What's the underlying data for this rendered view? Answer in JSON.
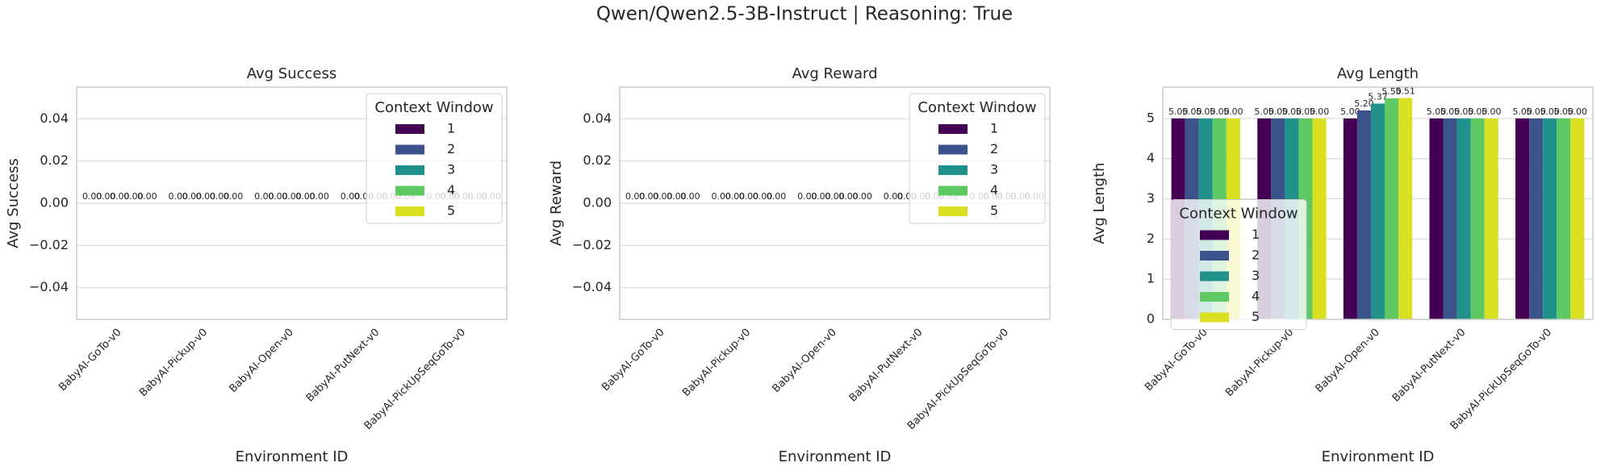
{
  "title": "Qwen/Qwen2.5-3B-Instruct | Reasoning: True",
  "chart_data": [
    {
      "type": "bar",
      "title": "Avg Success",
      "x_label": "Environment ID",
      "y_label": "Avg Success",
      "categories": [
        "BabyAI-GoTo-v0",
        "BabyAI-Pickup-v0",
        "BabyAI-Open-v0",
        "BabyAI-PutNext-v0",
        "BabyAI-PickUpSeqGoTo-v0"
      ],
      "legend_title": "Context Window",
      "legend_loc": "upper right",
      "grid": true,
      "ylim": [
        -0.055,
        0.055
      ],
      "yticks": [
        {
          "value": -0.04,
          "label": "−0.04"
        },
        {
          "value": -0.02,
          "label": "−0.02"
        },
        {
          "value": 0,
          "label": "0.00"
        },
        0.02,
        0.04
      ],
      "series": [
        {
          "name": "1",
          "color": "#440154",
          "values": [
            0,
            0,
            0,
            0,
            0
          ],
          "value_labels": [
            "0.00",
            "0.00",
            "0.00",
            "0.00",
            "0.00"
          ]
        },
        {
          "name": "2",
          "color": "#3b528b",
          "values": [
            0,
            0,
            0,
            0,
            0
          ],
          "value_labels": [
            "0.00",
            "0.00",
            "0.00",
            "0.00",
            "0.00"
          ]
        },
        {
          "name": "3",
          "color": "#21918c",
          "values": [
            0,
            0,
            0,
            0,
            0
          ],
          "value_labels": [
            "0.00",
            "0.00",
            "0.00",
            "0.00",
            "0.00"
          ]
        },
        {
          "name": "4",
          "color": "#5ec962",
          "values": [
            0,
            0,
            0,
            0,
            0
          ],
          "value_labels": [
            "0.00",
            "0.00",
            "0.00",
            "0.00",
            "0.00"
          ]
        },
        {
          "name": "5",
          "color": "#d9e021",
          "values": [
            0,
            0,
            0,
            0,
            0
          ],
          "value_labels": [
            "0.00",
            "0.00",
            "0.00",
            "0.00",
            "0.00"
          ]
        }
      ]
    },
    {
      "type": "bar",
      "title": "Avg Reward",
      "x_label": "Environment ID",
      "y_label": "Avg Reward",
      "categories": [
        "BabyAI-GoTo-v0",
        "BabyAI-Pickup-v0",
        "BabyAI-Open-v0",
        "BabyAI-PutNext-v0",
        "BabyAI-PickUpSeqGoTo-v0"
      ],
      "legend_title": "Context Window",
      "legend_loc": "upper right",
      "grid": true,
      "ylim": [
        -0.055,
        0.055
      ],
      "yticks": [
        {
          "value": -0.04,
          "label": "−0.04"
        },
        {
          "value": -0.02,
          "label": "−0.02"
        },
        {
          "value": 0,
          "label": "0.00"
        },
        0.02,
        0.04
      ],
      "series": [
        {
          "name": "1",
          "color": "#440154",
          "values": [
            0,
            0,
            0,
            0,
            0
          ],
          "value_labels": [
            "0.00",
            "0.00",
            "0.00",
            "0.00",
            "0.00"
          ]
        },
        {
          "name": "2",
          "color": "#3b528b",
          "values": [
            0,
            0,
            0,
            0,
            0
          ],
          "value_labels": [
            "0.00",
            "0.00",
            "0.00",
            "0.00",
            "0.00"
          ]
        },
        {
          "name": "3",
          "color": "#21918c",
          "values": [
            0,
            0,
            0,
            0,
            0
          ],
          "value_labels": [
            "0.00",
            "0.00",
            "0.00",
            "0.00",
            "0.00"
          ]
        },
        {
          "name": "4",
          "color": "#5ec962",
          "values": [
            0,
            0,
            0,
            0,
            0
          ],
          "value_labels": [
            "0.00",
            "0.00",
            "0.00",
            "0.00",
            "0.00"
          ]
        },
        {
          "name": "5",
          "color": "#d9e021",
          "values": [
            0,
            0,
            0,
            0,
            0
          ],
          "value_labels": [
            "0.00",
            "0.00",
            "0.00",
            "0.00",
            "0.00"
          ]
        }
      ]
    },
    {
      "type": "bar",
      "title": "Avg Length",
      "x_label": "Environment ID",
      "y_label": "Avg Length",
      "categories": [
        "BabyAI-GoTo-v0",
        "BabyAI-Pickup-v0",
        "BabyAI-Open-v0",
        "BabyAI-PutNext-v0",
        "BabyAI-PickUpSeqGoTo-v0"
      ],
      "legend_title": "Context Window",
      "legend_loc": "center left",
      "grid": true,
      "ylim": [
        0,
        5.78
      ],
      "yticks": [
        0,
        1,
        2,
        3,
        4,
        5
      ],
      "series": [
        {
          "name": "1",
          "color": "#440154",
          "values": [
            5,
            5,
            5,
            5,
            5
          ],
          "value_labels": [
            "5.00",
            "5.00",
            "5.00",
            "5.00",
            "5.00"
          ]
        },
        {
          "name": "2",
          "color": "#3b528b",
          "values": [
            5,
            5,
            5.2,
            5,
            5
          ],
          "value_labels": [
            "5.00",
            "5.00",
            "5.20",
            "5.00",
            "5.00"
          ]
        },
        {
          "name": "3",
          "color": "#21918c",
          "values": [
            5,
            5,
            5.37,
            5,
            5
          ],
          "value_labels": [
            "5.00",
            "5.00",
            "5.37",
            "5.00",
            "5.00"
          ]
        },
        {
          "name": "4",
          "color": "#5ec962",
          "values": [
            5,
            5,
            5.5,
            5,
            5
          ],
          "value_labels": [
            "5.00",
            "5.00",
            "5.50",
            "5.00",
            "5.00"
          ]
        },
        {
          "name": "5",
          "color": "#d9e021",
          "values": [
            5,
            5,
            5.51,
            5,
            5
          ],
          "value_labels": [
            "5.00",
            "5.00",
            "5.51",
            "5.00",
            "5.00"
          ]
        }
      ]
    }
  ]
}
